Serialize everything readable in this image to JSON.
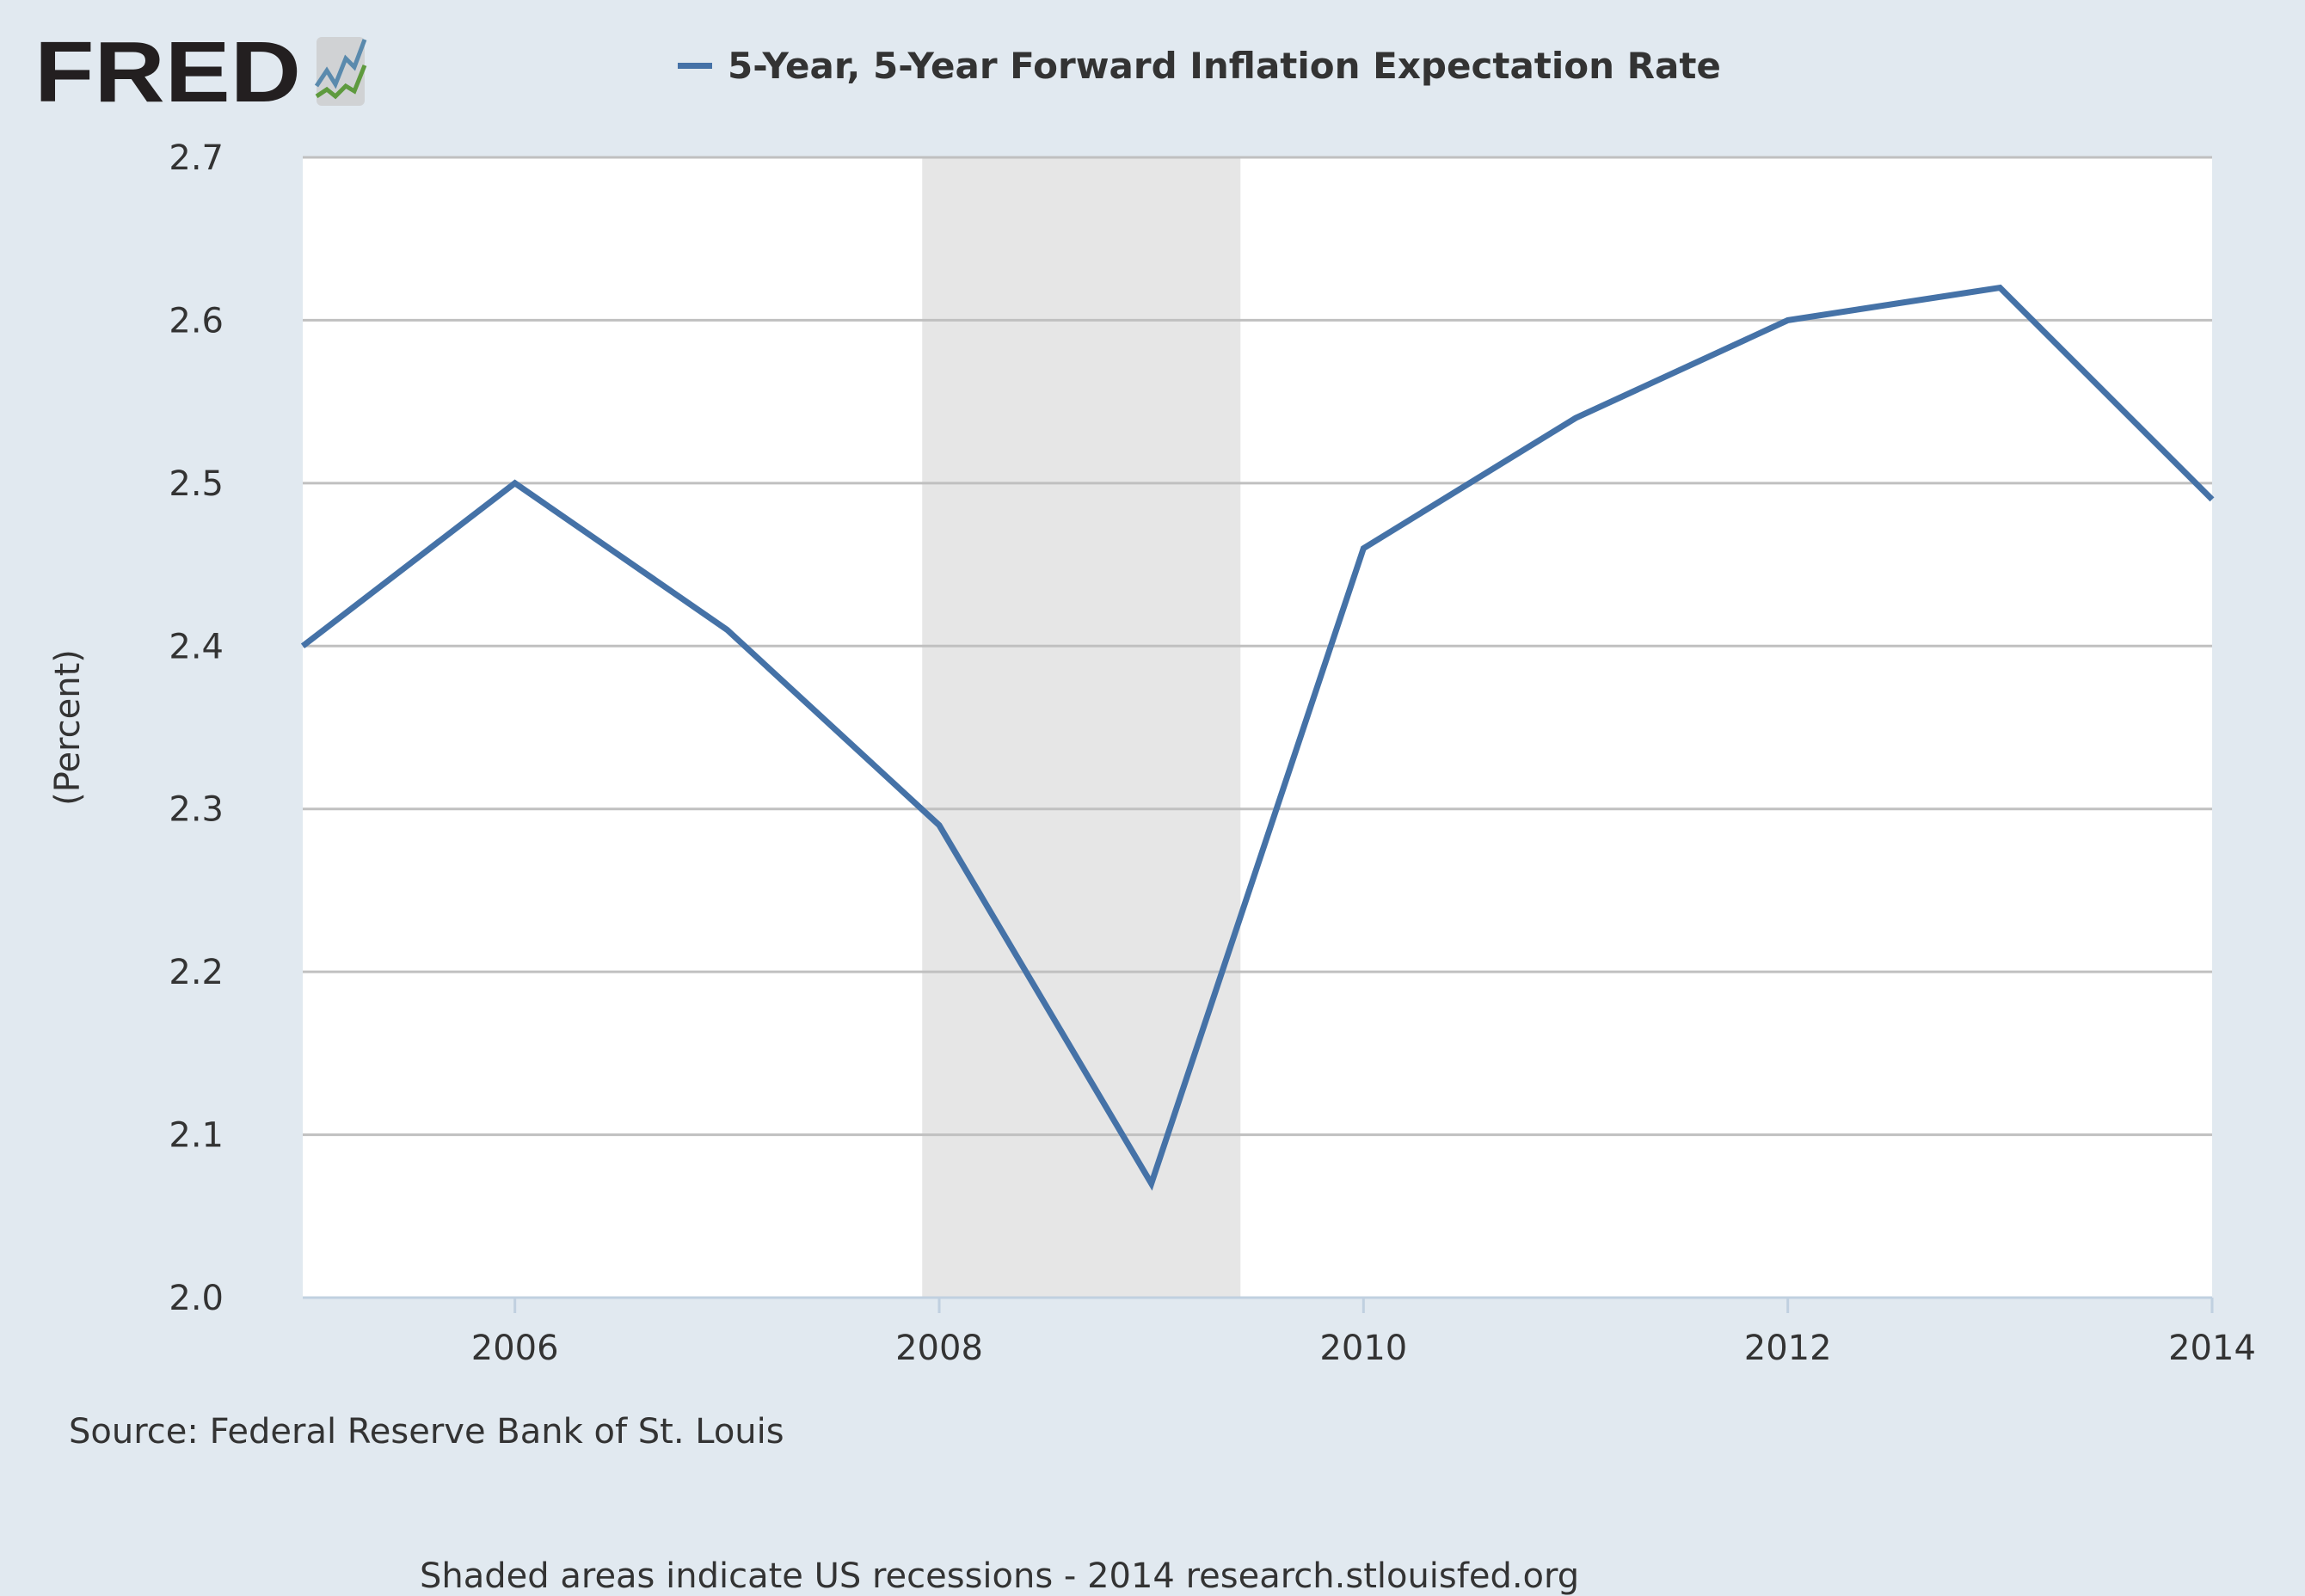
{
  "logo": {
    "text": "FRED",
    "icon": "fred-chart-logo-icon"
  },
  "colors": {
    "series": "#4572a7",
    "background": "#e1e9f0",
    "plot": "#ffffff",
    "recession": "#e6e6e6",
    "grid": "#c0c0c0"
  },
  "chart_data": {
    "type": "line",
    "title": "",
    "legend": [
      "5-Year, 5-Year Forward Inflation Expectation Rate"
    ],
    "legend_position": "top",
    "xlabel": "",
    "ylabel": "(Percent)",
    "x": [
      2005,
      2006,
      2007,
      2008,
      2009,
      2010,
      2011,
      2012,
      2013,
      2014
    ],
    "series": [
      {
        "name": "5-Year, 5-Year Forward Inflation Expectation Rate",
        "values": [
          2.4,
          2.5,
          2.41,
          2.29,
          2.07,
          2.46,
          2.54,
          2.6,
          2.62,
          2.49
        ]
      }
    ],
    "xlim": [
      2005,
      2014
    ],
    "ylim": [
      2.0,
      2.7
    ],
    "xticks": [
      "2006",
      "2008",
      "2010",
      "2012",
      "2014"
    ],
    "yticks": [
      "2.0",
      "2.1",
      "2.2",
      "2.3",
      "2.4",
      "2.5",
      "2.6",
      "2.7"
    ],
    "recessions": [
      [
        2007.92,
        2009.42
      ]
    ],
    "grid": true
  },
  "footer": {
    "source": "Source: Federal Reserve Bank of St. Louis",
    "note": "Shaded areas indicate US recessions - 2014 research.stlouisfed.org"
  }
}
